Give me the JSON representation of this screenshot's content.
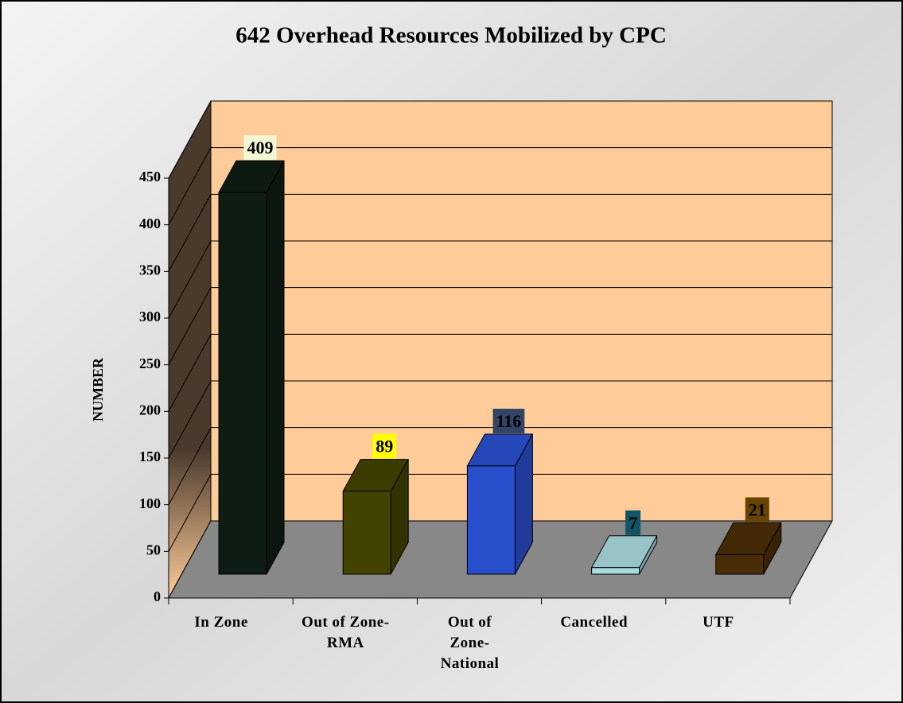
{
  "chart_data": {
    "type": "bar3d",
    "title": "642 Overhead Resources Mobilized by CPC",
    "y_label": "NUMBER",
    "categories": [
      "In Zone",
      "Out of Zone-RMA",
      "Out of Zone-National",
      "Cancelled",
      "UTF"
    ],
    "values": [
      409,
      89,
      116,
      7,
      21
    ],
    "colors": [
      "#0e1d13",
      "#434300",
      "#2a4fcc",
      "#a9dade",
      "#4a2d06"
    ],
    "label_colors": [
      "#f2f8d4",
      "#ffff00",
      "#334466",
      "#0f5566",
      "#664400"
    ],
    "ylim": [
      0,
      450
    ],
    "yticks": [
      0,
      50,
      100,
      150,
      200,
      250,
      300,
      350,
      400,
      450
    ],
    "grid": true
  }
}
